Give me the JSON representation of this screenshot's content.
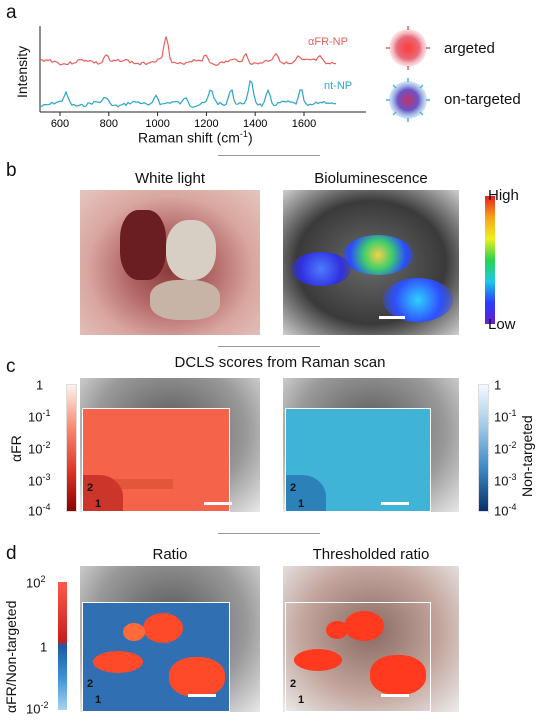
{
  "panel_a": {
    "label": "a",
    "ylabel": "Intensity",
    "xlabel": "Raman shift (cm",
    "xlabel_sup": "-1",
    "xlabel_end": ")",
    "xticks": [
      "600",
      "800",
      "1000",
      "1200",
      "1400",
      "1600"
    ],
    "series": [
      {
        "name": "αFR-NP",
        "color": "#e8605a"
      },
      {
        "name": "nt-NP",
        "color": "#2aa6c9"
      }
    ],
    "legend": [
      {
        "label": "argeted",
        "color": "#e23a3a"
      },
      {
        "label": "on-targeted",
        "color": "#7b4fb8"
      }
    ]
  },
  "panel_b": {
    "label": "b",
    "left_title": "White light",
    "right_title": "Bioluminescence",
    "cbar_high": "High",
    "cbar_low": "Low"
  },
  "panel_c": {
    "label": "c",
    "title": "DCLS scores from Raman scan",
    "left_axis_label": "αFR",
    "right_axis_label": "Non-targeted",
    "left_ticks": [
      {
        "base": "1",
        "exp": ""
      },
      {
        "base": "10",
        "exp": "-1"
      },
      {
        "base": "10",
        "exp": "-2"
      },
      {
        "base": "10",
        "exp": "-3"
      },
      {
        "base": "10",
        "exp": "-4"
      }
    ],
    "right_ticks": [
      {
        "base": "1",
        "exp": ""
      },
      {
        "base": "10",
        "exp": "-1"
      },
      {
        "base": "10",
        "exp": "-2"
      },
      {
        "base": "10",
        "exp": "-3"
      },
      {
        "base": "10",
        "exp": "-4"
      }
    ],
    "region_labels": [
      "2",
      "1"
    ]
  },
  "panel_d": {
    "label": "d",
    "left_title": "Ratio",
    "right_title": "Thresholded ratio",
    "axis_label": "αFR/Non-targeted",
    "ticks": [
      {
        "base": "10",
        "exp": "2"
      },
      {
        "base": "1",
        "exp": ""
      },
      {
        "base": "10",
        "exp": "-2"
      }
    ],
    "region_labels": [
      "2",
      "1"
    ]
  }
}
